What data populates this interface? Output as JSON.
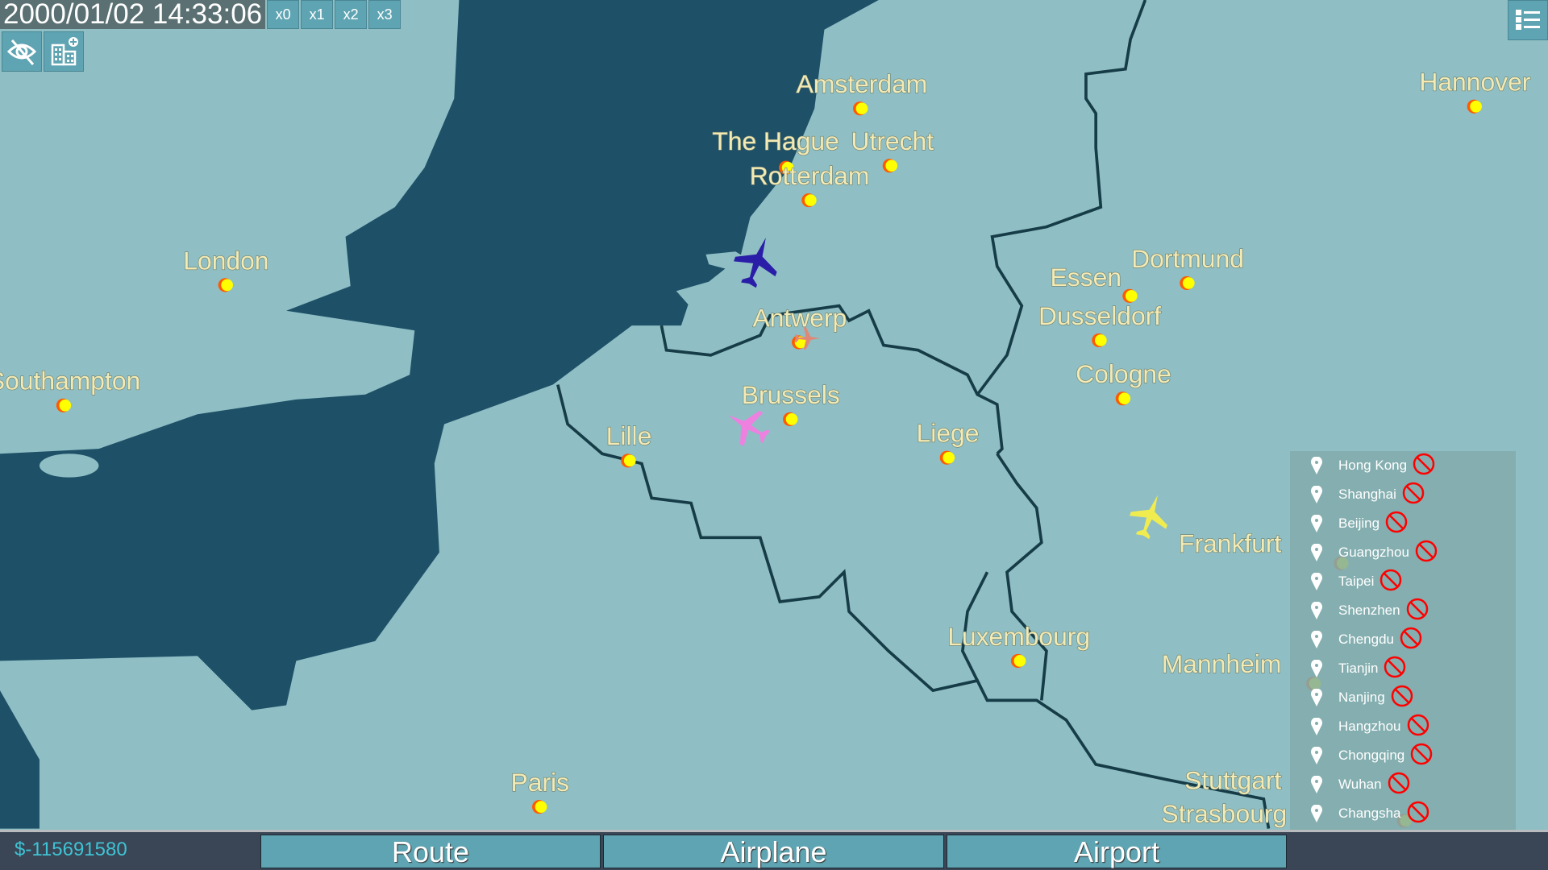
{
  "header": {
    "timestamp": "2000/01/02 14:33:06",
    "speed_buttons": [
      "x0",
      "x1",
      "x2",
      "x3"
    ],
    "tools": [
      {
        "icon": "eye-slash-icon"
      },
      {
        "icon": "building-add-icon"
      }
    ],
    "menu_icon": "list-menu-icon"
  },
  "map": {
    "colors": {
      "sea": "#1e5068",
      "land": "#8fbfc4",
      "border": "#163c48",
      "label": "#f3eab4",
      "city_dot": "#ffff00",
      "city_ring": "#ff5a00"
    },
    "cities": [
      "Amsterdam",
      "The Hague",
      "Utrecht",
      "Rotterdam",
      "Hannover",
      "London",
      "Southampton",
      "Essen",
      "Dortmund",
      "Dusseldorf",
      "Cologne",
      "Antwerp",
      "Brussels",
      "Lille",
      "Liege",
      "Frankfurt",
      "Luxembourg",
      "Mannheim",
      "Paris",
      "Stuttgart",
      "Strasbourg"
    ],
    "airplanes": [
      {
        "color": "#2a1ea8"
      },
      {
        "color": "#e08878"
      },
      {
        "color": "#ee80e0"
      },
      {
        "color": "#f0ec50"
      }
    ]
  },
  "side_list": {
    "items": [
      "Hong Kong",
      "Shanghai",
      "Beijing",
      "Guangzhou",
      "Taipei",
      "Shenzhen",
      "Chengdu",
      "Tianjin",
      "Nanjing",
      "Hangzhou",
      "Chongqing",
      "Wuhan",
      "Changsha"
    ],
    "item_icon": "map-pin-icon",
    "status_icon": "prohibited-icon"
  },
  "footer": {
    "money": "$-115691580",
    "tabs": [
      "Route",
      "Airplane",
      "Airport"
    ]
  }
}
